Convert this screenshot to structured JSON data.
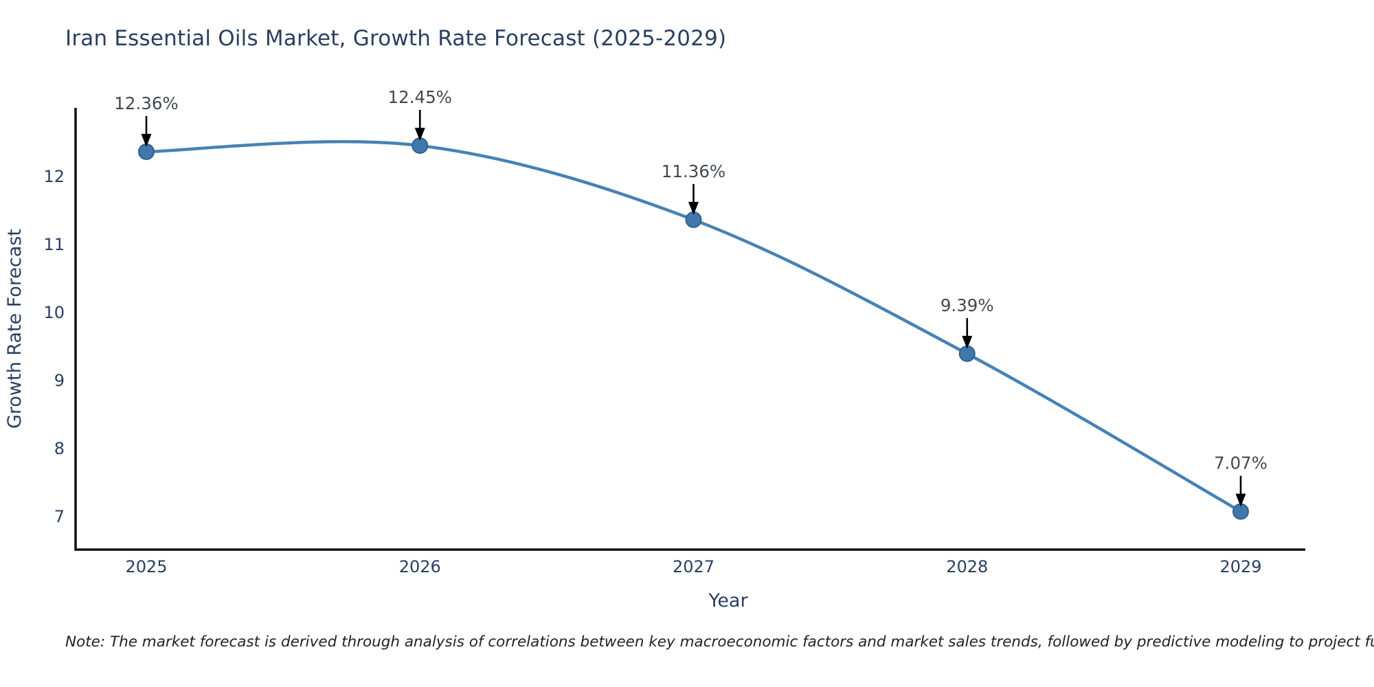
{
  "page": {
    "background": "#ffffff"
  },
  "chart_data": {
    "type": "line",
    "title": "Iran Essential Oils Market, Growth Rate Forecast (2025-2029)",
    "categories": [
      "2025",
      "2026",
      "2027",
      "2028",
      "2029"
    ],
    "series": [
      {
        "name": "Growth Rate Forecast",
        "values": [
          12.36,
          12.45,
          11.36,
          9.39,
          7.07
        ]
      }
    ],
    "point_labels": [
      "12.36%",
      "12.45%",
      "11.36%",
      "9.39%",
      "7.07%"
    ],
    "xlabel": "Year",
    "ylabel": "Growth Rate Forecast",
    "yticks": [
      "7",
      "8",
      "9",
      "10",
      "11",
      "12"
    ],
    "ytick_values": [
      7,
      8,
      9,
      10,
      11,
      12
    ],
    "ylim": [
      6.5,
      13.1
    ],
    "grid": false,
    "legend": "none",
    "annotation_style": "arrow-down-to-point",
    "line_shape": "spline",
    "colors": {
      "line": "#4682b4",
      "marker_fill": "#4178ab",
      "marker_edge": "#2f608c",
      "axis_line": "#111111",
      "tick_text": "#2a3f5f",
      "axis_title_text": "#2a3f5f",
      "annotation_text": "#43484f",
      "annotation_arrow": "#000000",
      "title_text": "#2a3f5f",
      "note_text": "#222222"
    }
  },
  "note": "Note: The market forecast is derived through analysis of correlations between key macroeconomic factors and market sales trends, followed by predictive modeling to project future sales"
}
